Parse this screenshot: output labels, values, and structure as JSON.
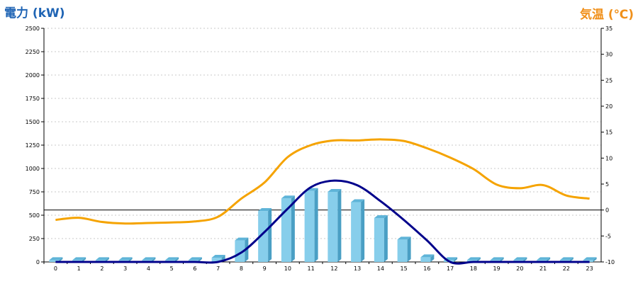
{
  "chart_data": {
    "type": "bar",
    "left_axis_title": "電力 (kW)",
    "right_axis_title": "気温 (℃)",
    "categories": [
      "0",
      "1",
      "2",
      "3",
      "4",
      "5",
      "6",
      "7",
      "8",
      "9",
      "10",
      "11",
      "12",
      "13",
      "14",
      "15",
      "16",
      "17",
      "18",
      "19",
      "20",
      "21",
      "22",
      "23"
    ],
    "y_ticks": [
      0,
      250,
      500,
      750,
      1000,
      1250,
      1500,
      1750,
      2000,
      2250,
      2500
    ],
    "y_range": [
      0,
      2500
    ],
    "y2_ticks": [
      -10,
      -5,
      0,
      5,
      10,
      15,
      20,
      25,
      30,
      35
    ],
    "y2_range": [
      -10,
      35
    ],
    "grid": true,
    "series": [
      {
        "axis": "left",
        "type": "bar",
        "color": "#87ceeb",
        "values": [
          20,
          20,
          20,
          20,
          20,
          20,
          20,
          45,
          230,
          545,
          680,
          760,
          750,
          640,
          470,
          240,
          50,
          20,
          20,
          20,
          20,
          20,
          20,
          20
        ]
      },
      {
        "axis": "left",
        "type": "line",
        "color": "#00008b",
        "values": [
          0,
          0,
          0,
          0,
          0,
          0,
          0,
          0,
          100,
          320,
          570,
          800,
          870,
          820,
          650,
          450,
          230,
          0,
          0,
          0,
          0,
          0,
          0,
          0
        ]
      },
      {
        "axis": "right",
        "type": "line",
        "color": "#f5a300",
        "values": [
          -1.9,
          -1.5,
          -2.3,
          -2.6,
          -2.5,
          -2.4,
          -2.2,
          -1.3,
          2.2,
          5.3,
          10.2,
          12.5,
          13.4,
          13.4,
          13.6,
          13.3,
          11.9,
          10.1,
          7.9,
          4.9,
          4.2,
          4.8,
          2.8,
          2.2
        ]
      }
    ]
  }
}
